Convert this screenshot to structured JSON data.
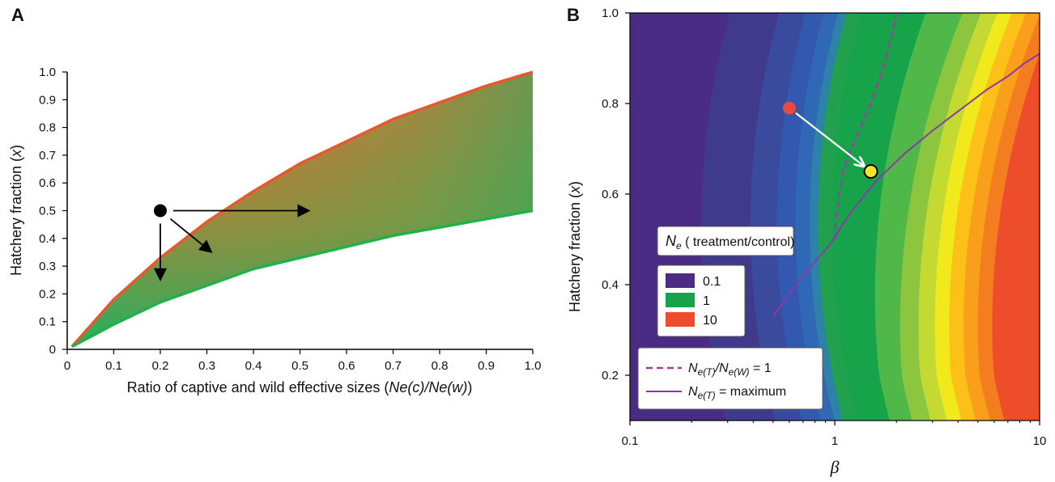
{
  "chart_data": [
    {
      "panel": "A",
      "type": "area",
      "title": "",
      "xlabel": "Ratio of captive and wild effective sizes (",
      "xlabel_math": "Ne(c)/Ne(w)",
      "xlabel_end": ")",
      "ylabel": "Hatchery fraction (",
      "ylabel_var": "x",
      "ylabel_end": ")",
      "xlim": [
        0,
        1
      ],
      "ylim": [
        0,
        1
      ],
      "xticks": [
        0,
        0.1,
        0.2,
        0.3,
        0.4,
        0.5,
        0.6,
        0.7,
        0.8,
        0.9,
        1.0
      ],
      "xtick_labels": [
        "0",
        "0.1",
        "0.2",
        "0.3",
        "0.4",
        "0.5",
        "0.6",
        "0.7",
        "0.8",
        "0.9",
        "1.0"
      ],
      "yticks": [
        0,
        0.1,
        0.2,
        0.3,
        0.4,
        0.5,
        0.6,
        0.7,
        0.8,
        0.9,
        1.0
      ],
      "ytick_labels": [
        "0",
        "0.1",
        "0.2",
        "0.3",
        "0.4",
        "0.5",
        "0.6",
        "0.7",
        "0.8",
        "0.9",
        "1.0"
      ],
      "series": [
        {
          "color": "#e8582e",
          "x": [
            0.01,
            0.1,
            0.2,
            0.3,
            0.4,
            0.5,
            0.6,
            0.7,
            0.8,
            0.9,
            1.0
          ],
          "y": [
            0.01,
            0.18,
            0.33,
            0.46,
            0.57,
            0.67,
            0.75,
            0.83,
            0.89,
            0.95,
            1.0
          ]
        },
        {
          "color": "#22b04b",
          "x": [
            0.01,
            0.1,
            0.2,
            0.3,
            0.4,
            0.5,
            0.6,
            0.7,
            0.8,
            0.9,
            1.0
          ],
          "y": [
            0.01,
            0.09,
            0.17,
            0.23,
            0.29,
            0.33,
            0.37,
            0.41,
            0.44,
            0.47,
            0.5
          ]
        }
      ],
      "point": {
        "x": 0.2,
        "y": 0.5
      },
      "arrows": [
        {
          "x": 0.52,
          "y": 0.5
        },
        {
          "x": 0.2,
          "y": 0.25
        },
        {
          "x": 0.31,
          "y": 0.35
        }
      ]
    },
    {
      "panel": "B",
      "type": "heatmap",
      "title": "",
      "xlabel": "β",
      "ylabel": "Hatchery fraction (",
      "ylabel_var": "x",
      "ylabel_end": ")",
      "xscale": "log",
      "xlim": [
        0.1,
        10
      ],
      "ylim": [
        0.1,
        1.0
      ],
      "xticks": [
        0.1,
        1,
        10
      ],
      "xtick_labels": [
        "0.1",
        "1",
        "10"
      ],
      "yticks": [
        0.2,
        0.4,
        0.6,
        0.8,
        1.0
      ],
      "ytick_labels": [
        "0.2",
        "0.4",
        "0.6",
        "0.8",
        "1.0"
      ],
      "color_levels": [
        "#4b2c84",
        "#3f3a8c",
        "#3a4b9e",
        "#3258b0",
        "#2f69b6",
        "#2c82a8",
        "#21a14e",
        "#16a34a",
        "#50b848",
        "#8cc63f",
        "#c4d932",
        "#f2e91c",
        "#fdc018",
        "#f99f1b",
        "#f47d20",
        "#ee4d2c"
      ],
      "legend_title_symbol": "N",
      "legend_title_sub": "e",
      "legend_title_rest": " ( treatment/control)",
      "legend": [
        {
          "label": "0.1",
          "color": "#4b2c84"
        },
        {
          "label": "1",
          "color": "#16a34a"
        },
        {
          "label": "10",
          "color": "#ee4d2c"
        }
      ],
      "lines_legend": [
        {
          "label_sym": "N",
          "label_sub1": "e(T)",
          "label_mid": "/N",
          "label_sub2": "e(W)",
          "label_end": " = 1",
          "style": "dashed",
          "color": "#a33ca3"
        },
        {
          "label_sym": "N",
          "label_sub1": "e(T)",
          "label_end": " = maximum",
          "style": "solid",
          "color": "#8b3aa8"
        }
      ],
      "dashed_line": {
        "x": [
          1.0,
          1.02,
          1.05,
          1.1,
          1.2,
          1.35,
          1.5,
          1.7,
          1.9,
          2.0
        ],
        "y": [
          0.5,
          0.55,
          0.6,
          0.65,
          0.7,
          0.75,
          0.8,
          0.87,
          0.95,
          1.0
        ]
      },
      "solid_line": {
        "x": [
          0.5,
          0.7,
          0.95,
          1.2,
          1.6,
          2.2,
          3.0,
          4.2,
          5.5,
          7.0,
          8.5,
          10.0
        ],
        "y": [
          0.33,
          0.42,
          0.49,
          0.56,
          0.63,
          0.69,
          0.74,
          0.79,
          0.83,
          0.86,
          0.89,
          0.91
        ]
      },
      "start_point": {
        "x": 0.6,
        "y": 0.79,
        "color": "#e84a3f"
      },
      "end_point": {
        "x": 1.5,
        "y": 0.65,
        "color": "#f5e52a"
      }
    }
  ]
}
